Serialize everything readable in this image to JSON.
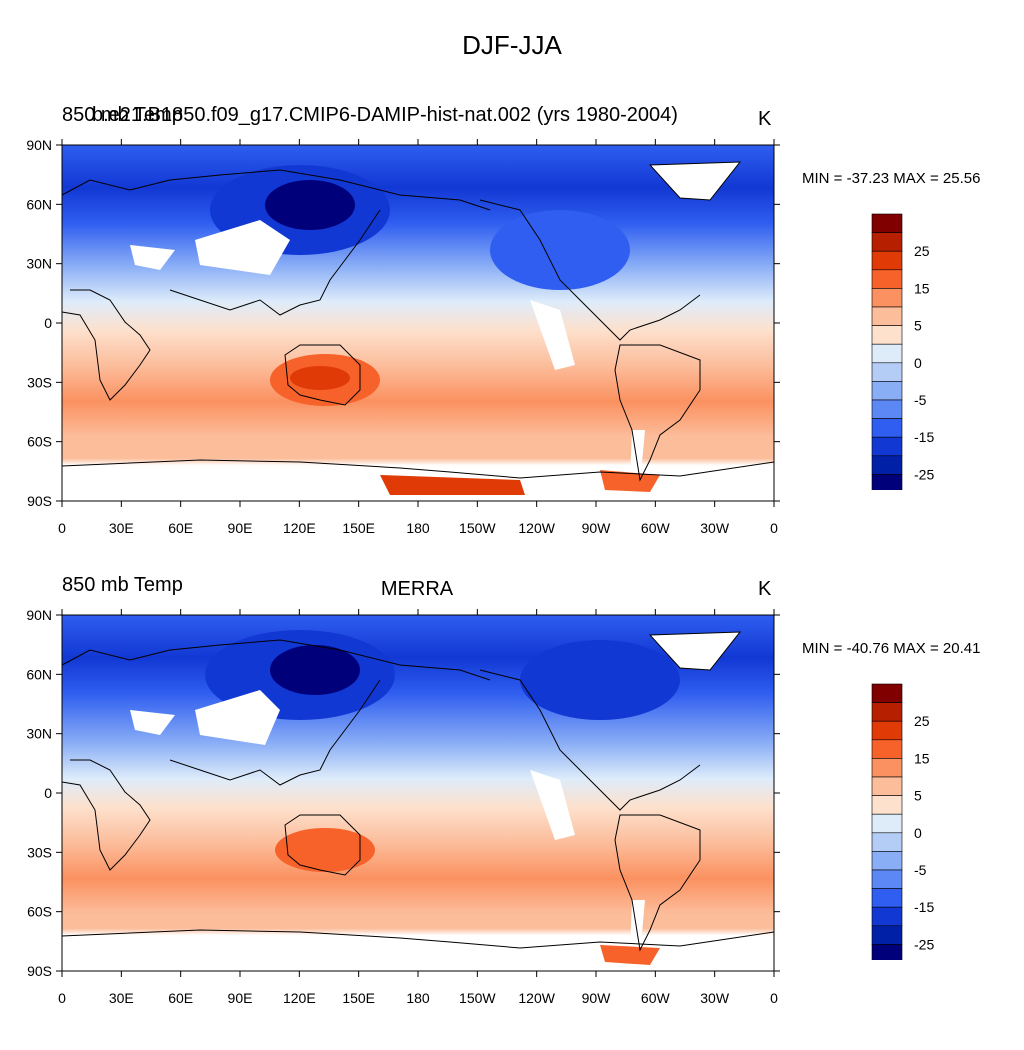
{
  "figure_title": "DJF-JJA",
  "colorbar": {
    "labels": [
      "25",
      "15",
      "5",
      "0",
      "-5",
      "-15",
      "-25"
    ],
    "colors": [
      "#800000",
      "#b61f00",
      "#e03a06",
      "#f7622b",
      "#fb9160",
      "#fcbd9b",
      "#fde1cd",
      "#deecfa",
      "#b3cdf6",
      "#8aaef6",
      "#5b88f5",
      "#2f5ef0",
      "#1238d4",
      "#0020a8",
      "#00007a"
    ]
  },
  "axes": {
    "lat_ticks": [
      "90N",
      "60N",
      "30N",
      "0",
      "30S",
      "60S",
      "90S"
    ],
    "lon_ticks": [
      "0",
      "30E",
      "60E",
      "90E",
      "120E",
      "150E",
      "180",
      "150W",
      "120W",
      "90W",
      "60W",
      "30W",
      "0"
    ]
  },
  "panels": [
    {
      "title_left": "850 mb Temp",
      "title_left_overlay": "b.e21.B1850.f09_g17.CMIP6-DAMIP-hist-nat.002 (yrs 1980-2004)",
      "title_center": "",
      "units": "K",
      "minmax": "MIN = -37.23 MAX =  25.56"
    },
    {
      "title_left": "850 mb Temp",
      "title_left_overlay": "",
      "title_center": "MERRA",
      "units": "K",
      "minmax": "MIN = -40.76 MAX =  20.41"
    }
  ]
}
